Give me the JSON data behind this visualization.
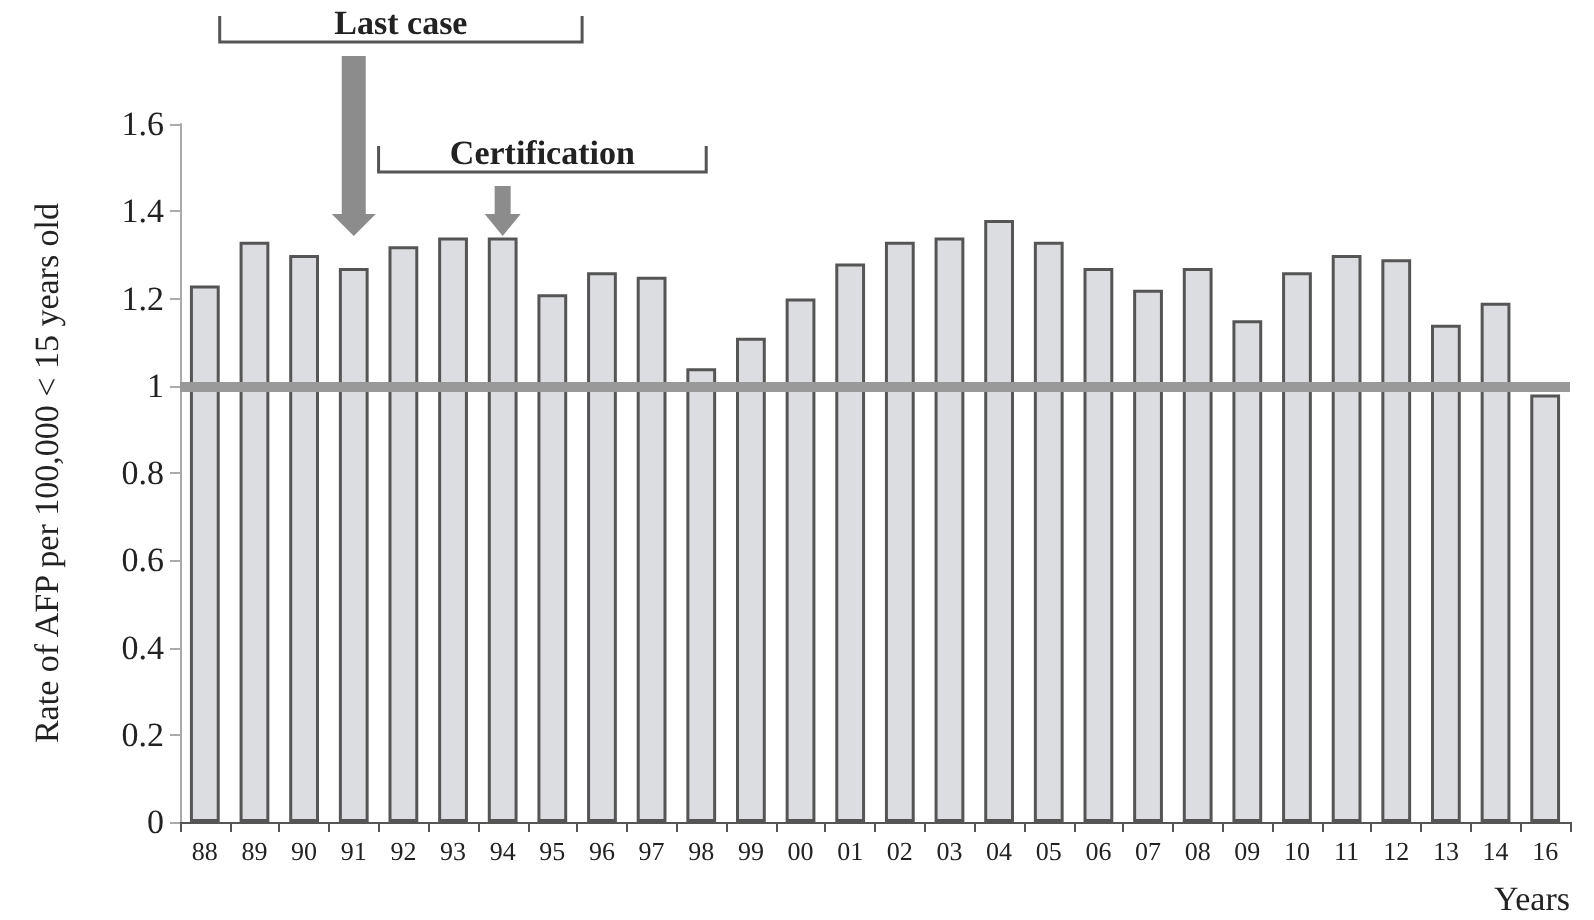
{
  "chart_data": {
    "type": "bar",
    "xlabel": "Years",
    "ylabel": "Rate of AFP per 100,000 < 15 years old",
    "categories": [
      "88",
      "89",
      "90",
      "91",
      "92",
      "93",
      "94",
      "95",
      "96",
      "97",
      "98",
      "99",
      "00",
      "01",
      "02",
      "03",
      "04",
      "05",
      "06",
      "07",
      "08",
      "09",
      "10",
      "11",
      "12",
      "13",
      "14",
      "16"
    ],
    "values": [
      1.23,
      1.33,
      1.3,
      1.27,
      1.32,
      1.34,
      1.34,
      1.21,
      1.26,
      1.25,
      1.04,
      1.11,
      1.2,
      1.28,
      1.33,
      1.34,
      1.38,
      1.33,
      1.27,
      1.22,
      1.27,
      1.15,
      1.26,
      1.3,
      1.29,
      1.14,
      1.19,
      0.98
    ],
    "color": "#dcdde0",
    "ylim": [
      0,
      1.6
    ],
    "yticks": [
      0,
      0.2,
      0.4,
      0.6,
      0.8,
      1,
      1.2,
      1.4,
      1.6
    ],
    "grid": false,
    "ref_lines": [
      {
        "axis": "y",
        "value": 1,
        "color": "#999999"
      }
    ],
    "annotations": [
      "Last case",
      "Certification"
    ]
  }
}
